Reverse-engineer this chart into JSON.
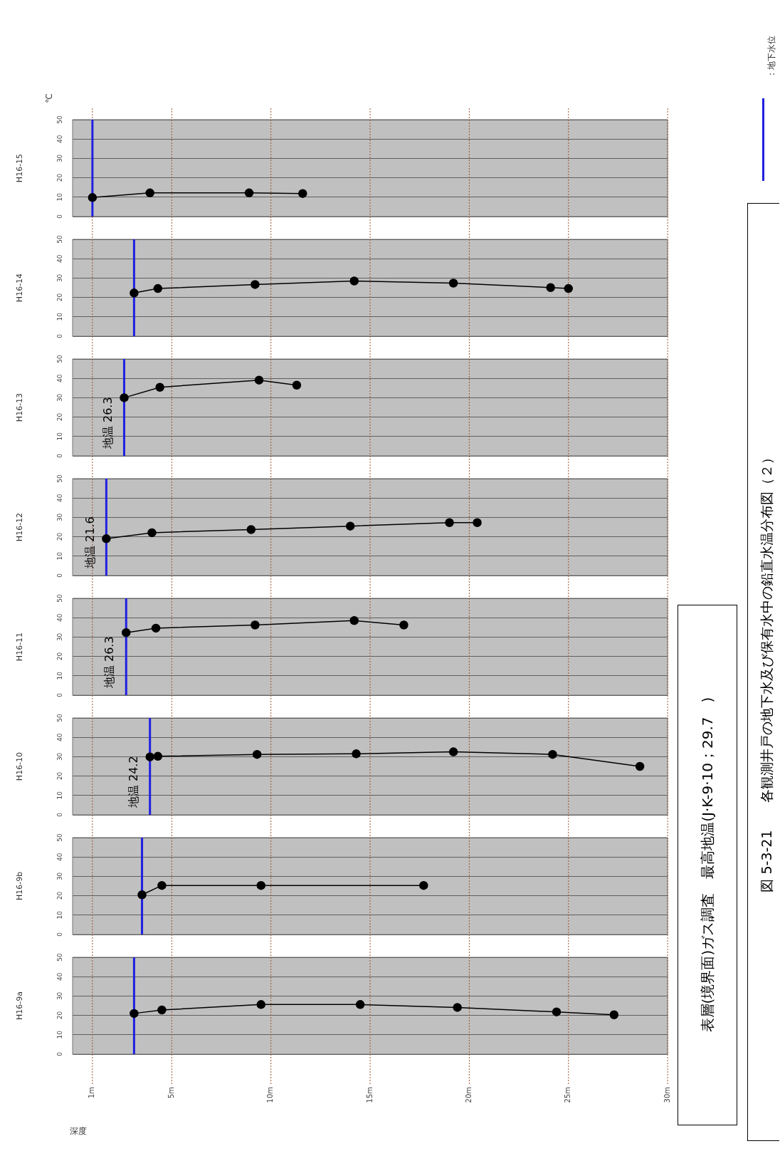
{
  "chart_data": [
    {
      "type": "line",
      "title": "H16-15",
      "ylabel": "℃",
      "x": [
        1.0,
        3.9,
        8.9,
        11.6
      ],
      "values": [
        9.8,
        12.2,
        12.2,
        11.9
      ],
      "color": "#000000",
      "marker": "circle",
      "xlim": [
        0,
        30
      ],
      "xticks": [
        {
          "value": 1,
          "label": null
        },
        {
          "value": 5,
          "label": null
        },
        {
          "value": 10,
          "label": null
        },
        {
          "value": 15,
          "label": null
        },
        {
          "value": 20,
          "label": null
        },
        {
          "value": 25,
          "label": null
        },
        {
          "value": 30,
          "label": null
        }
      ],
      "ylim": [
        0,
        50
      ],
      "yticks": [
        0,
        10,
        20,
        30,
        40,
        50
      ],
      "grid": true,
      "tick_labels": "y",
      "ref_lines": [
        {
          "axis": "x",
          "value": 1.0,
          "color": "#2020e0"
        }
      ]
    },
    {
      "type": "line",
      "title": "H16-14",
      "x": [
        3.1,
        4.3,
        9.2,
        14.2,
        19.2,
        24.1,
        25.0
      ],
      "values": [
        22.3,
        24.6,
        26.7,
        28.5,
        27.4,
        25.1,
        24.6
      ],
      "color": "#000000",
      "marker": "circle",
      "xlim": [
        0,
        30
      ],
      "xticks": [
        {
          "value": 1,
          "label": null
        },
        {
          "value": 5,
          "label": null
        },
        {
          "value": 10,
          "label": null
        },
        {
          "value": 15,
          "label": null
        },
        {
          "value": 20,
          "label": null
        },
        {
          "value": 25,
          "label": null
        },
        {
          "value": 30,
          "label": null
        }
      ],
      "ylim": [
        0,
        50
      ],
      "yticks": [
        0,
        10,
        20,
        30,
        40,
        50
      ],
      "grid": true,
      "tick_labels": "y",
      "ref_lines": [
        {
          "axis": "x",
          "value": 3.1,
          "color": "#2020e0"
        }
      ]
    },
    {
      "type": "line",
      "title": "H16-13",
      "x": [
        2.6,
        4.4,
        9.4,
        11.3
      ],
      "values": [
        30.0,
        35.4,
        39.1,
        36.5
      ],
      "color": "#000000",
      "marker": "circle",
      "xlim": [
        0,
        30
      ],
      "xticks": [
        {
          "value": 1,
          "label": null
        },
        {
          "value": 5,
          "label": null
        },
        {
          "value": 10,
          "label": null
        },
        {
          "value": 15,
          "label": null
        },
        {
          "value": 20,
          "label": null
        },
        {
          "value": 25,
          "label": null
        },
        {
          "value": 30,
          "label": null
        }
      ],
      "ylim": [
        0,
        50
      ],
      "yticks": [
        0,
        10,
        20,
        30,
        40,
        50
      ],
      "grid": true,
      "tick_labels": "y",
      "ref_lines": [
        {
          "axis": "x",
          "value": 2.6,
          "color": "#2020e0"
        }
      ],
      "annotations": [
        "地温 26.3"
      ]
    },
    {
      "type": "line",
      "title": "H16-12",
      "x": [
        1.7,
        4.0,
        9.0,
        14.0,
        19.0,
        20.4
      ],
      "values": [
        19.0,
        22.1,
        23.7,
        25.5,
        27.3,
        27.3
      ],
      "color": "#000000",
      "marker": "circle",
      "xlim": [
        0,
        30
      ],
      "xticks": [
        {
          "value": 1,
          "label": null
        },
        {
          "value": 5,
          "label": null
        },
        {
          "value": 10,
          "label": null
        },
        {
          "value": 15,
          "label": null
        },
        {
          "value": 20,
          "label": null
        },
        {
          "value": 25,
          "label": null
        },
        {
          "value": 30,
          "label": null
        }
      ],
      "ylim": [
        0,
        50
      ],
      "yticks": [
        0,
        10,
        20,
        30,
        40,
        50
      ],
      "grid": true,
      "tick_labels": "y",
      "ref_lines": [
        {
          "axis": "x",
          "value": 1.7,
          "color": "#2020e0"
        }
      ],
      "annotations": [
        "地温 21.6"
      ]
    },
    {
      "type": "line",
      "title": "H16-11",
      "x": [
        2.7,
        4.2,
        9.2,
        14.2,
        16.7
      ],
      "values": [
        32.3,
        34.6,
        36.2,
        38.5,
        36.2
      ],
      "color": "#000000",
      "marker": "circle",
      "xlim": [
        0,
        30
      ],
      "xticks": [
        {
          "value": 1,
          "label": null
        },
        {
          "value": 5,
          "label": null
        },
        {
          "value": 10,
          "label": null
        },
        {
          "value": 15,
          "label": null
        },
        {
          "value": 20,
          "label": null
        },
        {
          "value": 25,
          "label": null
        },
        {
          "value": 30,
          "label": null
        }
      ],
      "ylim": [
        0,
        50
      ],
      "yticks": [
        0,
        10,
        20,
        30,
        40,
        50
      ],
      "grid": true,
      "tick_labels": "y",
      "ref_lines": [
        {
          "axis": "x",
          "value": 2.7,
          "color": "#2020e0"
        }
      ],
      "annotations": [
        "地温 26.3"
      ]
    },
    {
      "type": "line",
      "title": "H16-10",
      "x": [
        3.9,
        4.3,
        9.3,
        14.3,
        19.2,
        24.2,
        28.6
      ],
      "values": [
        29.9,
        30.2,
        31.2,
        31.5,
        32.5,
        31.2,
        25.0
      ],
      "color": "#000000",
      "marker": "circle",
      "xlim": [
        0,
        30
      ],
      "xticks": [
        {
          "value": 1,
          "label": null
        },
        {
          "value": 5,
          "label": null
        },
        {
          "value": 10,
          "label": null
        },
        {
          "value": 15,
          "label": null
        },
        {
          "value": 20,
          "label": null
        },
        {
          "value": 25,
          "label": null
        },
        {
          "value": 30,
          "label": null
        }
      ],
      "ylim": [
        0,
        50
      ],
      "yticks": [
        0,
        10,
        20,
        30,
        40,
        50
      ],
      "grid": true,
      "tick_labels": "y",
      "ref_lines": [
        {
          "axis": "x",
          "value": 3.9,
          "color": "#2020e0"
        }
      ],
      "annotations": [
        "地温 24.2"
      ]
    },
    {
      "type": "line",
      "title": "H16-9b",
      "x": [
        3.5,
        4.5,
        9.5,
        17.7
      ],
      "values": [
        20.5,
        25.3,
        25.3,
        25.3
      ],
      "color": "#000000",
      "marker": "circle",
      "xlim": [
        0,
        30
      ],
      "xticks": [
        {
          "value": 1,
          "label": null
        },
        {
          "value": 5,
          "label": null
        },
        {
          "value": 10,
          "label": null
        },
        {
          "value": 15,
          "label": null
        },
        {
          "value": 20,
          "label": null
        },
        {
          "value": 25,
          "label": null
        },
        {
          "value": 30,
          "label": null
        }
      ],
      "ylim": [
        0,
        50
      ],
      "yticks": [
        0,
        10,
        20,
        30,
        40,
        50
      ],
      "grid": true,
      "tick_labels": "y",
      "ref_lines": [
        {
          "axis": "x",
          "value": 3.5,
          "color": "#2020e0"
        }
      ]
    },
    {
      "type": "line",
      "title": "H16-9a",
      "xlabel": "深度",
      "x": [
        3.1,
        4.5,
        9.5,
        14.5,
        19.4,
        24.4,
        27.3
      ],
      "values": [
        21.0,
        22.8,
        25.6,
        25.6,
        24.1,
        21.8,
        20.3
      ],
      "color": "#000000",
      "marker": "circle",
      "xlim": [
        0,
        30
      ],
      "xticks": [
        {
          "value": 1,
          "label": "1m"
        },
        {
          "value": 5,
          "label": "5m"
        },
        {
          "value": 10,
          "label": "10m"
        },
        {
          "value": 15,
          "label": "15m"
        },
        {
          "value": 20,
          "label": "20m"
        },
        {
          "value": 25,
          "label": "25m"
        },
        {
          "value": 30,
          "label": "30m"
        }
      ],
      "ylim": [
        0,
        50
      ],
      "yticks": [
        0,
        10,
        20,
        30,
        40,
        50
      ],
      "grid": true,
      "ref_lines": [
        {
          "axis": "x",
          "value": 3.1,
          "color": "#2020e0"
        }
      ]
    },
    {
      "type": "other",
      "title": "図 5-3-21　　各観測井戸の地下水及び保有水中の鉛直水温分布図（２）",
      "annotations": [
        "表層(境界面)ガス調査　最高地温(J·K-9·10；29.7　)",
        "：地下水位"
      ]
    }
  ]
}
